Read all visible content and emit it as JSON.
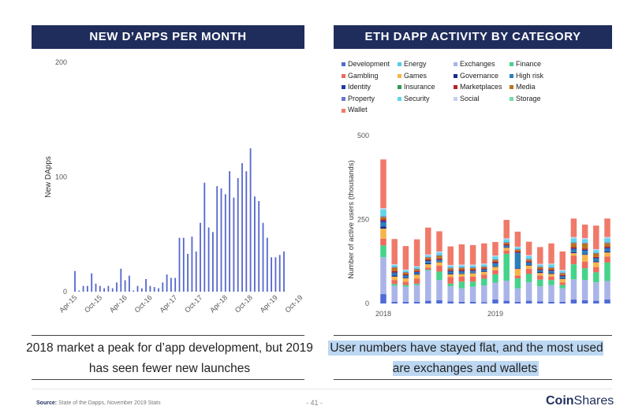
{
  "left_title": "NEW D’APPS PER MONTH",
  "right_title": "ETH DAPP ACTIVITY BY CATEGORY",
  "left_caption": "2018 market a peak for d’app development, but 2019 has seen fewer new launches",
  "right_caption": "User numbers have stayed flat, and the most used are exchanges and wallets",
  "footer": {
    "source_label": "Source:",
    "source_text": "State of the Dapps, November 2019 Stats",
    "page": "- 41 -",
    "brand_bold": "Coin",
    "brand_thin": "Shares"
  },
  "colors": {
    "banner": "#1f2d5c",
    "left_bars": "#5566cc",
    "highlight": "#bcd7f2"
  },
  "chart_data": [
    {
      "type": "bar",
      "title": "NEW D’APPS PER MONTH",
      "xlabel": "",
      "ylabel": "New DApps",
      "ylim": [
        0,
        200
      ],
      "yticks": [
        0,
        100,
        200
      ],
      "tick_labels": [
        "Apr-15",
        "Oct-15",
        "Apr-16",
        "Oct-16",
        "Apr-17",
        "Oct-17",
        "Apr-18",
        "Oct-18",
        "Apr-19",
        "Oct-19"
      ],
      "categories_start": "Apr-15",
      "values": [
        18,
        1,
        5,
        5,
        16,
        7,
        5,
        3,
        5,
        3,
        8,
        20,
        10,
        14,
        1,
        5,
        3,
        11,
        5,
        4,
        3,
        8,
        15,
        12,
        12,
        47,
        47,
        33,
        48,
        35,
        60,
        95,
        56,
        52,
        92,
        90,
        85,
        105,
        82,
        99,
        112,
        105,
        125,
        83,
        79,
        60,
        47,
        30,
        30,
        32,
        35
      ],
      "grid": false
    },
    {
      "type": "bar",
      "stacked": true,
      "title": "ETH DAPP ACTIVITY BY CATEGORY",
      "ylabel": "Number of active users (thousands)",
      "xlabel": "",
      "ylim": [
        0,
        500
      ],
      "yticks": [
        0,
        250,
        500
      ],
      "x_tick_labels": [
        "2018",
        "2019"
      ],
      "legend_position": "top",
      "categories_count": 21,
      "series": [
        {
          "name": "Development",
          "color": "#4f6bd6",
          "values": [
            28,
            5,
            5,
            5,
            8,
            10,
            6,
            5,
            5,
            4,
            12,
            8,
            5,
            8,
            6,
            5,
            5,
            12,
            10,
            8,
            12
          ]
        },
        {
          "name": "Energy",
          "color": "#58c8ee",
          "values": [
            0,
            0,
            0,
            0,
            0,
            0,
            0,
            0,
            0,
            0,
            0,
            0,
            0,
            0,
            0,
            0,
            0,
            0,
            0,
            0,
            0
          ]
        },
        {
          "name": "Exchanges",
          "color": "#aab4e8",
          "values": [
            110,
            48,
            45,
            50,
            90,
            60,
            45,
            40,
            45,
            50,
            50,
            60,
            40,
            55,
            45,
            50,
            40,
            60,
            60,
            55,
            55
          ]
        },
        {
          "name": "Finance",
          "color": "#45d38a",
          "values": [
            35,
            5,
            5,
            4,
            3,
            25,
            8,
            20,
            15,
            20,
            25,
            80,
            30,
            25,
            20,
            15,
            10,
            45,
            35,
            30,
            55
          ]
        },
        {
          "name": "Gambling",
          "color": "#ee6a5c",
          "values": [
            20,
            12,
            10,
            15,
            6,
            18,
            20,
            15,
            15,
            12,
            12,
            10,
            8,
            15,
            12,
            10,
            8,
            25,
            20,
            15,
            18
          ]
        },
        {
          "name": "Games",
          "color": "#f5b54a",
          "values": [
            30,
            10,
            10,
            12,
            10,
            10,
            8,
            8,
            10,
            8,
            10,
            8,
            20,
            10,
            8,
            8,
            10,
            8,
            20,
            15,
            12
          ]
        },
        {
          "name": "Governance",
          "color": "#1c2a8c",
          "values": [
            6,
            4,
            2,
            2,
            3,
            2,
            3,
            2,
            2,
            2,
            2,
            2,
            2,
            2,
            3,
            3,
            2,
            3,
            2,
            3,
            3
          ]
        },
        {
          "name": "High risk",
          "color": "#2a7fb8",
          "values": [
            12,
            6,
            5,
            4,
            6,
            4,
            5,
            5,
            4,
            4,
            8,
            3,
            45,
            6,
            4,
            5,
            5,
            8,
            10,
            8,
            8
          ]
        },
        {
          "name": "Identity",
          "color": "#1f3aa6",
          "values": [
            5,
            3,
            2,
            2,
            2,
            2,
            2,
            2,
            2,
            2,
            2,
            2,
            2,
            2,
            2,
            2,
            2,
            3,
            3,
            2,
            3
          ]
        },
        {
          "name": "Insurance",
          "color": "#2e9a52",
          "values": [
            0,
            0,
            0,
            0,
            0,
            0,
            0,
            0,
            0,
            0,
            0,
            0,
            0,
            0,
            0,
            0,
            0,
            0,
            0,
            0,
            0
          ]
        },
        {
          "name": "Marketplaces",
          "color": "#b52222",
          "values": [
            5,
            4,
            3,
            3,
            4,
            3,
            3,
            4,
            3,
            3,
            4,
            3,
            3,
            3,
            3,
            3,
            3,
            4,
            4,
            3,
            4
          ]
        },
        {
          "name": "Media",
          "color": "#b8731e",
          "values": [
            6,
            10,
            5,
            5,
            5,
            8,
            5,
            5,
            5,
            4,
            5,
            5,
            5,
            5,
            5,
            5,
            5,
            12,
            15,
            10,
            10
          ]
        },
        {
          "name": "Property",
          "color": "#6b76cf",
          "values": [
            3,
            2,
            2,
            2,
            2,
            2,
            2,
            2,
            2,
            2,
            2,
            2,
            2,
            2,
            2,
            2,
            2,
            2,
            2,
            2,
            2
          ]
        },
        {
          "name": "Security",
          "color": "#5fd4ea",
          "values": [
            20,
            5,
            5,
            5,
            4,
            8,
            5,
            5,
            5,
            5,
            8,
            8,
            5,
            8,
            5,
            8,
            5,
            12,
            10,
            8,
            12
          ]
        },
        {
          "name": "Social",
          "color": "#c5d0f2",
          "values": [
            4,
            3,
            2,
            2,
            3,
            3,
            3,
            3,
            3,
            3,
            3,
            3,
            2,
            3,
            3,
            3,
            3,
            4,
            4,
            3,
            4
          ]
        },
        {
          "name": "Storage",
          "color": "#6fe0a6",
          "values": [
            0,
            0,
            0,
            0,
            0,
            0,
            0,
            0,
            0,
            0,
            0,
            0,
            0,
            0,
            0,
            0,
            0,
            0,
            0,
            0,
            0
          ]
        },
        {
          "name": "Wallet",
          "color": "#f07a6a",
          "values": [
            145,
            75,
            70,
            80,
            80,
            60,
            55,
            60,
            58,
            60,
            40,
            55,
            45,
            40,
            50,
            60,
            55,
            55,
            40,
            70,
            55
          ]
        }
      ]
    }
  ]
}
